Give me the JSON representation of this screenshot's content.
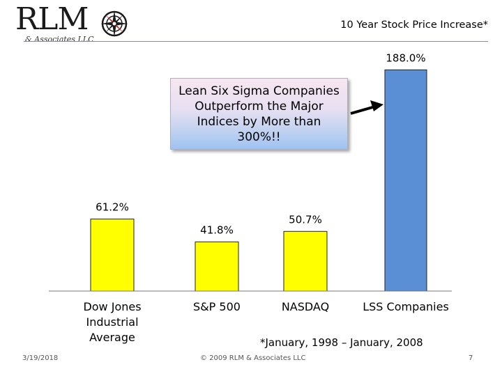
{
  "header": {
    "logo_text": "RLM",
    "logo_subtitle": "& Associates LLC",
    "title": "10 Year Stock Price Increase*"
  },
  "callout": {
    "text": "Lean Six Sigma Companies Outperform the Major Indices by More than 300%!!"
  },
  "chart_data": {
    "type": "bar",
    "title": "10 Year Stock Price Increase*",
    "categories": [
      "Dow Jones Industrial Average",
      "S&P 500",
      "NASDAQ",
      "LSS Companies"
    ],
    "category_lines": [
      [
        "Dow Jones",
        "Industrial",
        "Average"
      ],
      [
        "S&P 500"
      ],
      [
        "NASDAQ"
      ],
      [
        "LSS Companies"
      ]
    ],
    "values": [
      61.2,
      41.8,
      50.7,
      188.0
    ],
    "value_labels": [
      "61.2%",
      "41.8%",
      "50.7%",
      "188.0%"
    ],
    "bar_colors": [
      "#ffff00",
      "#ffff00",
      "#ffff00",
      "#5a8fd6"
    ],
    "ylim": [
      0,
      200
    ],
    "xlabel": "",
    "ylabel": "",
    "grid": false,
    "legend": "none"
  },
  "footnote": "*January, 1998 – January, 2008",
  "footer": {
    "date": "3/19/2018",
    "copyright": "© 2009 RLM & Associates LLC",
    "page": "7"
  }
}
